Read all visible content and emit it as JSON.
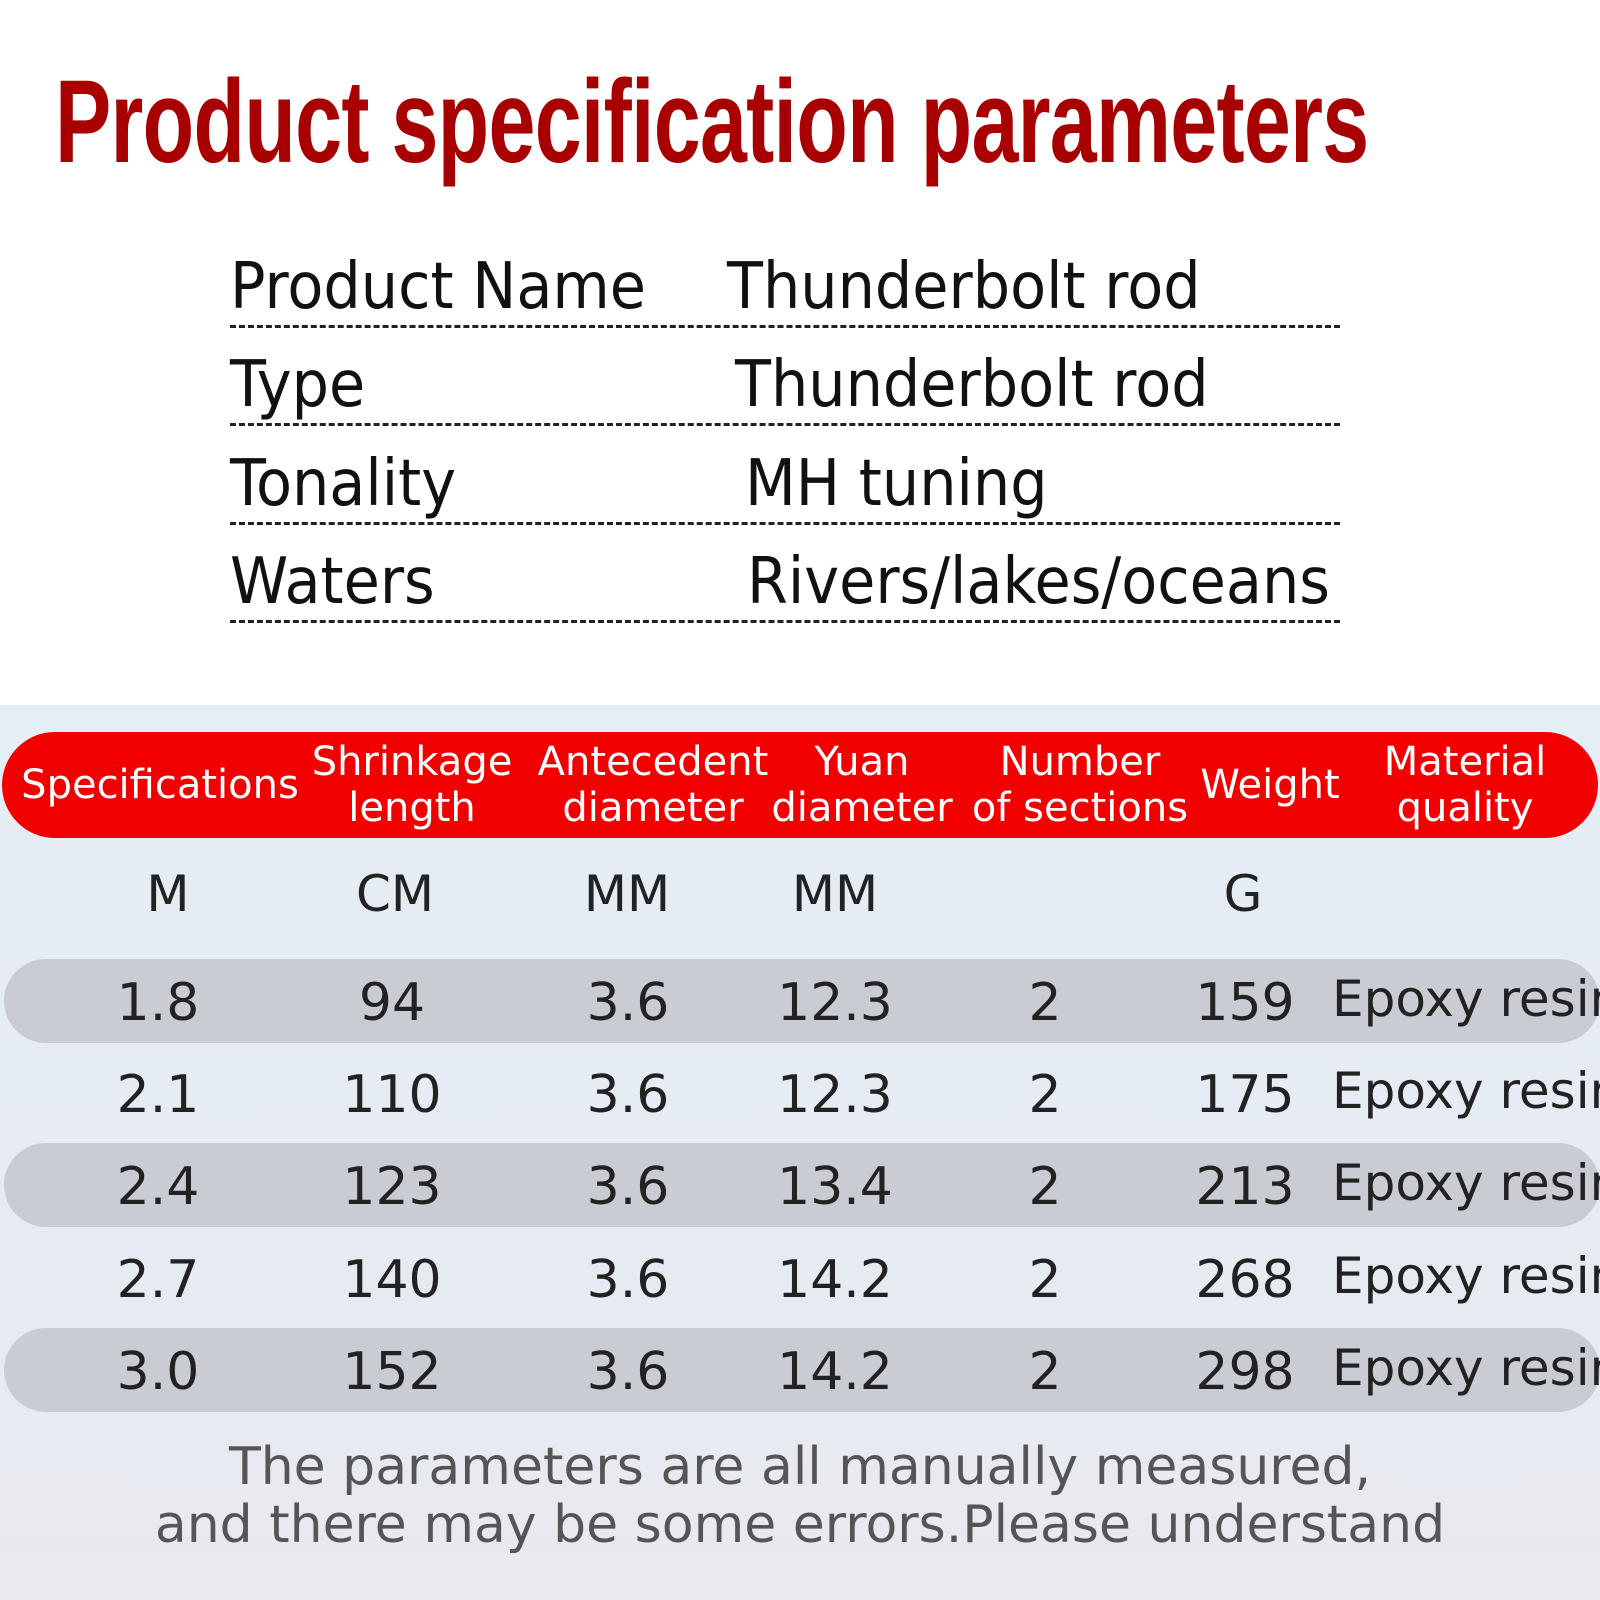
{
  "title": "Product specification parameters",
  "colors": {
    "title": "#a80000",
    "header_bar": "#f20000",
    "row_band": "#c9ccd3"
  },
  "info": [
    {
      "key": "Product Name",
      "value": "Thunderbolt rod"
    },
    {
      "key": "Type",
      "value": "Thunderbolt rod"
    },
    {
      "key": "Tonality",
      "value": "MH tuning"
    },
    {
      "key": "Waters",
      "value": "Rivers/lakes/oceans"
    }
  ],
  "table": {
    "headers": [
      "Specifications",
      "Shrinkage\nlength",
      "Antecedent\ndiameter",
      "Yuan\ndiameter",
      "Number\nof sections",
      "Weight",
      "Material\nquality"
    ],
    "units": [
      "M",
      "CM",
      "MM",
      "MM",
      "",
      "G",
      ""
    ],
    "rows": [
      [
        "1.8",
        "94",
        "3.6",
        "12.3",
        "2",
        "159",
        "Epoxy resin"
      ],
      [
        "2.1",
        "110",
        "3.6",
        "12.3",
        "2",
        "175",
        "Epoxy resin"
      ],
      [
        "2.4",
        "123",
        "3.6",
        "13.4",
        "2",
        "213",
        "Epoxy resin"
      ],
      [
        "2.7",
        "140",
        "3.6",
        "14.2",
        "2",
        "268",
        "Epoxy resin"
      ],
      [
        "3.0",
        "152",
        "3.6",
        "14.2",
        "2",
        "298",
        "Epoxy resin"
      ]
    ]
  },
  "note": [
    "The parameters are all manually measured,",
    "and there may be some errors.Please understand"
  ]
}
